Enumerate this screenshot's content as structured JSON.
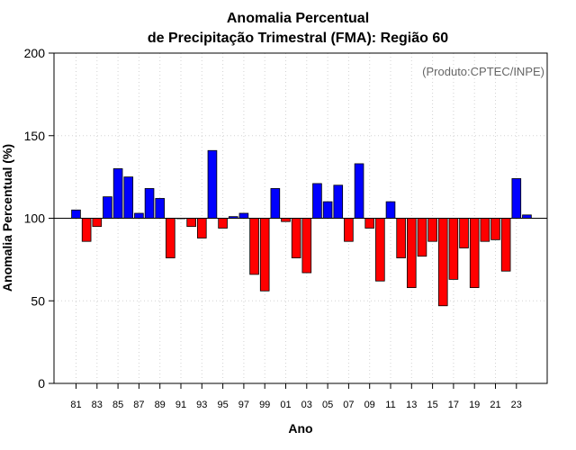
{
  "chart_data": {
    "type": "bar",
    "title": [
      "Anomalia Percentual",
      "de Precipitação Trimestral (FMA): Região 60"
    ],
    "xlabel": "Ano",
    "ylabel": "Anomalia Percentual (%)",
    "annotation": "(Produto:CPTEC/INPE)",
    "ylim": [
      0,
      200
    ],
    "yticks": [
      0,
      50,
      100,
      150,
      200
    ],
    "baseline": 100,
    "grid": true,
    "colors": {
      "above": "#0000ff",
      "below": "#ff0000",
      "edge": "#000000",
      "grid": "#d3d3d3"
    },
    "xtick_labels": [
      "81",
      "83",
      "85",
      "87",
      "89",
      "91",
      "93",
      "95",
      "97",
      "99",
      "01",
      "03",
      "05",
      "07",
      "09",
      "11",
      "13",
      "15",
      "17",
      "19",
      "21",
      "23"
    ],
    "categories": [
      "1981",
      "1982",
      "1983",
      "1984",
      "1985",
      "1986",
      "1987",
      "1988",
      "1989",
      "1990",
      "1991",
      "1992",
      "1993",
      "1994",
      "1995",
      "1996",
      "1997",
      "1998",
      "1999",
      "2000",
      "2001",
      "2002",
      "2003",
      "2004",
      "2005",
      "2006",
      "2007",
      "2008",
      "2009",
      "2010",
      "2011",
      "2012",
      "2013",
      "2014",
      "2015",
      "2016",
      "2017",
      "2018",
      "2019",
      "2020",
      "2021",
      "2022",
      "2023",
      "2024"
    ],
    "values": [
      105,
      86,
      95,
      113,
      130,
      125,
      103,
      118,
      112,
      76,
      100,
      95,
      88,
      141,
      94,
      101,
      103,
      66,
      56,
      118,
      98,
      76,
      67,
      121,
      110,
      120,
      86,
      133,
      94,
      62,
      110,
      76,
      58,
      77,
      86,
      47,
      63,
      82,
      58,
      86,
      87,
      68,
      124,
      102
    ]
  }
}
